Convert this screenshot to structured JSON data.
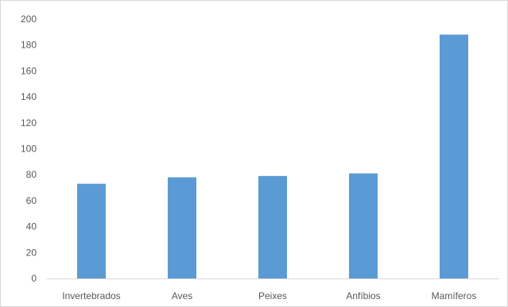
{
  "chart_data": {
    "type": "bar",
    "title": "",
    "xlabel": "",
    "ylabel": "",
    "categories": [
      "Invertebrados",
      "Aves",
      "Peixes",
      "Anfíbios",
      "Mamíferos"
    ],
    "values": [
      73,
      78,
      79,
      81,
      188
    ],
    "ylim": [
      0,
      200
    ],
    "yticks": [
      0,
      20,
      40,
      60,
      80,
      100,
      120,
      140,
      160,
      180,
      200
    ],
    "ytick_labels": [
      "0",
      "20",
      "40",
      "60",
      "80",
      "100",
      "120",
      "140",
      "160",
      "180",
      "200"
    ],
    "grid": false,
    "legend": "none",
    "bar_color": "#5b9bd5"
  }
}
